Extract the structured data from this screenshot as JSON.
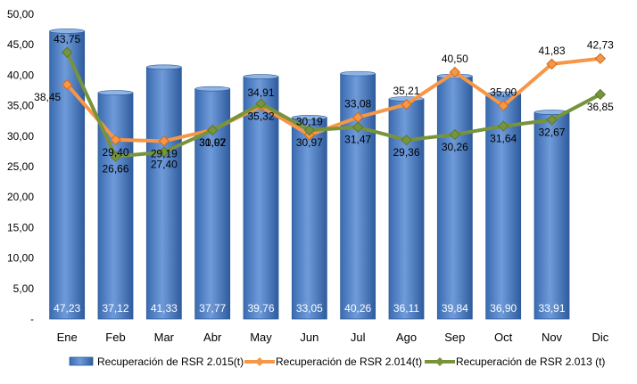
{
  "chart_data": {
    "type": "bar",
    "categories": [
      "Ene",
      "Feb",
      "Mar",
      "Abr",
      "May",
      "Jun",
      "Jul",
      "Ago",
      "Sep",
      "Oct",
      "Nov",
      "Dic"
    ],
    "ylim": [
      0,
      50
    ],
    "yticks": [
      "-",
      "5,00",
      "10,00",
      "15,00",
      "20,00",
      "25,00",
      "30,00",
      "35,00",
      "40,00",
      "45,00",
      "50,00"
    ],
    "grid": false,
    "legend_position": "bottom",
    "series": [
      {
        "name": "Recuperación de RSR 2.015(t)",
        "kind": "bar",
        "color": "#4F81BD",
        "values": [
          47.23,
          37.12,
          41.33,
          37.77,
          39.76,
          33.05,
          40.26,
          36.11,
          39.84,
          36.9,
          33.91,
          null
        ],
        "labels": [
          "47,23",
          "37,12",
          "41,33",
          "37,77",
          "39,76",
          "33,05",
          "40,26",
          "36,11",
          "39,84",
          "36,90",
          "33,91",
          ""
        ]
      },
      {
        "name": "Recuperación de RSR 2.014(t)",
        "kind": "line",
        "color": "#F79646",
        "values": [
          38.45,
          29.4,
          29.19,
          31.02,
          34.91,
          30.19,
          33.08,
          35.21,
          40.5,
          35.0,
          41.83,
          42.73
        ],
        "labels": [
          "38,45",
          "29,40",
          "29,19",
          "31,02",
          "34,91",
          "30,19",
          "33,08",
          "35,21",
          "40,50",
          "35,00",
          "41,83",
          "42,73"
        ]
      },
      {
        "name": "Recuperación de RSR 2.013 (t)",
        "kind": "line",
        "color": "#77933C",
        "values": [
          43.75,
          26.66,
          27.4,
          30.97,
          35.32,
          30.97,
          31.47,
          29.36,
          30.26,
          31.64,
          32.67,
          36.85
        ],
        "labels": [
          "43,75",
          "26,66",
          "27,40",
          "30,97",
          "35,32",
          "30,97",
          "31,47",
          "29,36",
          "30,26",
          "31,64",
          "32,67",
          "36,85"
        ]
      }
    ]
  }
}
